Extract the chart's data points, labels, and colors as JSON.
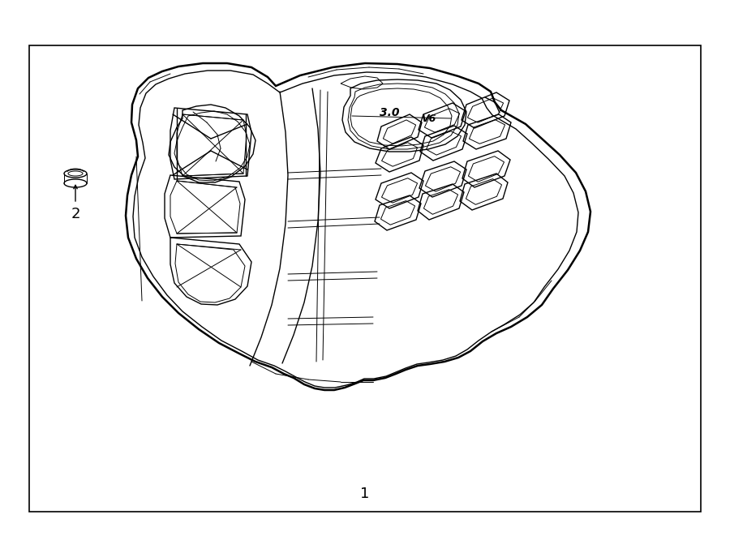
{
  "bg_color": "#ffffff",
  "line_color": "#000000",
  "lw_outer": 1.8,
  "lw_inner": 1.0,
  "lw_thin": 0.7,
  "label1": "1",
  "label2": "2",
  "label_fontsize": 13
}
